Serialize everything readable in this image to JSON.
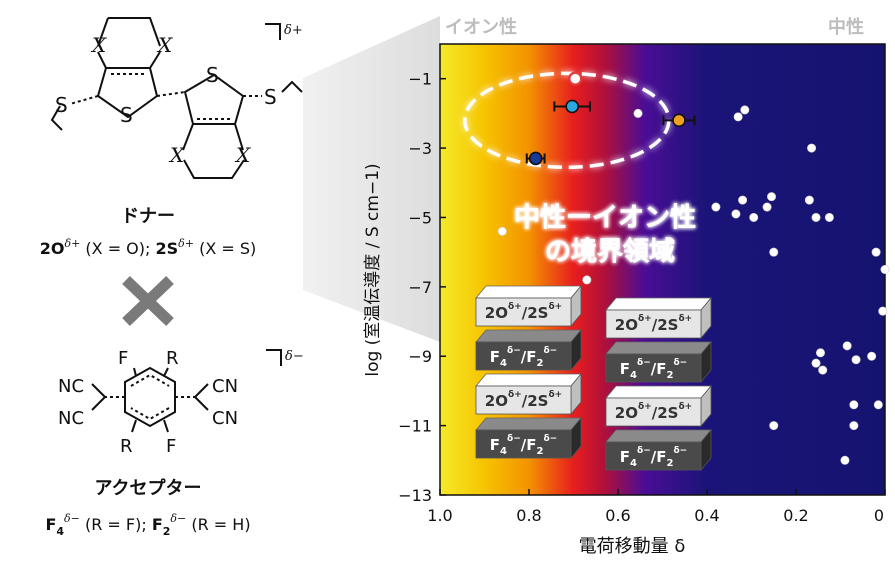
{
  "left_panel": {
    "donor_x_top_left": "X",
    "donor_x_top_right": "X",
    "donor_x_bottom_left": "X",
    "donor_x_bottom_right": "X",
    "donor_s_ring_left": "S",
    "donor_s_ring_right": "S",
    "donor_s_exo_left": "S",
    "donor_s_exo_right": "S",
    "donor_charge": "δ+",
    "donor_title": "ドナー",
    "donor_formula": {
      "a_bold": "2O",
      "a_sup": "δ+",
      "a_rest": " (X = O); ",
      "b_bold": "2S",
      "b_sup": "δ+",
      "b_rest": " (X = S)"
    },
    "cross_symbol": "cross-icon",
    "acceptor_f_top": "F",
    "acceptor_r_top": "R",
    "acceptor_r_bottom": "R",
    "acceptor_f_bottom": "F",
    "acceptor_nc_top": "NC",
    "acceptor_nc_bottom": "NC",
    "acceptor_cn_top": "CN",
    "acceptor_cn_bottom": "CN",
    "acceptor_charge": "δ−",
    "acceptor_title": "アクセプター",
    "acceptor_formula": {
      "a_bold": "F",
      "a_sub": "4",
      "a_sup": "δ−",
      "a_rest": " (R = F); ",
      "b_bold": "F",
      "b_sub": "2",
      "b_sup": "δ−",
      "b_rest": " (R = H)"
    }
  },
  "chart_data": {
    "type": "scatter",
    "title": "",
    "xlabel": "電荷移動量 δ",
    "ylabel": "log (室温伝導度 / S cm−1)",
    "xlim": [
      1.0,
      0.0
    ],
    "ylim": [
      -13,
      0
    ],
    "x_ticks": [
      "1.0",
      "0.8",
      "0.6",
      "0.4",
      "0.2",
      "0"
    ],
    "x_tick_values": [
      1.0,
      0.8,
      0.6,
      0.4,
      0.2,
      0.0
    ],
    "y_ticks": [
      "−1",
      "−3",
      "−5",
      "−7",
      "−9",
      "−11",
      "−13"
    ],
    "y_tick_values": [
      -1,
      -3,
      -5,
      -7,
      -9,
      -11,
      -13
    ],
    "ionic_label": "イオン性",
    "neutral_label": "中性",
    "background_gradient": [
      "#f5ea2a",
      "#f6b800",
      "#e71e1e",
      "#4a0d96",
      "#1a1478",
      "#151370"
    ],
    "annotation_line1": "中性ーイオン性",
    "annotation_line2": "の境界領域",
    "highlight_ellipse": {
      "x_center": 0.715,
      "y_center": -2.2
    },
    "crystal_blocks": {
      "left_stack": [
        {
          "kind": "donor",
          "label": "2O",
          "sup": "δ+",
          "label2": "2S",
          "sup2": "δ+"
        },
        {
          "kind": "acceptor",
          "label": "F",
          "sub": "4",
          "sup": "δ−",
          "label2": "F",
          "sub2": "2",
          "sup2": "δ−"
        },
        {
          "kind": "donor",
          "label": "2O",
          "sup": "δ+",
          "label2": "2S",
          "sup2": "δ+"
        },
        {
          "kind": "acceptor",
          "label": "F",
          "sub": "4",
          "sup": "δ−",
          "label2": "F",
          "sub2": "2",
          "sup2": "δ−"
        }
      ],
      "right_stack": [
        {
          "kind": "donor",
          "label": "2O",
          "sup": "δ+",
          "label2": "2S",
          "sup2": "δ+"
        },
        {
          "kind": "acceptor",
          "label": "F",
          "sub": "4",
          "sup": "δ−",
          "label2": "F",
          "sub2": "2",
          "sup2": "δ−"
        },
        {
          "kind": "donor",
          "label": "2O",
          "sup": "δ+",
          "label2": "2S",
          "sup2": "δ+"
        },
        {
          "kind": "acceptor",
          "label": "F",
          "sub": "4",
          "sup": "δ−",
          "label2": "F",
          "sub2": "2",
          "sup2": "δ−"
        }
      ]
    },
    "series": [
      {
        "color": "#ffffff",
        "points": [
          [
            0.86,
            -5.4
          ],
          [
            0.67,
            -6.8
          ],
          [
            0.555,
            -2.0
          ],
          [
            0.33,
            -2.1
          ],
          [
            0.315,
            -1.9
          ],
          [
            0.165,
            -3.0
          ],
          [
            0.38,
            -4.7
          ],
          [
            0.335,
            -4.9
          ],
          [
            0.32,
            -4.5
          ],
          [
            0.295,
            -5.0
          ],
          [
            0.265,
            -4.7
          ],
          [
            0.255,
            -4.4
          ],
          [
            0.25,
            -6.0
          ],
          [
            0.17,
            -4.5
          ],
          [
            0.155,
            -5.0
          ],
          [
            0.125,
            -5.0
          ],
          [
            0.02,
            -6.0
          ],
          [
            0.0,
            -6.5
          ],
          [
            0.005,
            -7.7
          ],
          [
            0.145,
            -8.9
          ],
          [
            0.14,
            -9.4
          ],
          [
            0.155,
            -9.2
          ],
          [
            0.085,
            -8.7
          ],
          [
            0.065,
            -9.1
          ],
          [
            0.07,
            -10.4
          ],
          [
            0.03,
            -9.0
          ],
          [
            0.015,
            -10.4
          ],
          [
            0.07,
            -11.0
          ],
          [
            0.09,
            -12.0
          ],
          [
            0.25,
            -11.0
          ]
        ]
      },
      {
        "color": "#e23b3b",
        "points": [
          [
            0.696,
            -1.0
          ]
        ]
      },
      {
        "color": "#2aa8e0",
        "points": [
          [
            0.703,
            -1.8
          ]
        ],
        "x_error": 0.04
      },
      {
        "color": "#f0a020",
        "points": [
          [
            0.463,
            -2.2
          ]
        ],
        "x_error": 0.035
      },
      {
        "color": "#1a3a9a",
        "points": [
          [
            0.785,
            -3.3
          ]
        ],
        "x_error": 0.02
      }
    ]
  }
}
